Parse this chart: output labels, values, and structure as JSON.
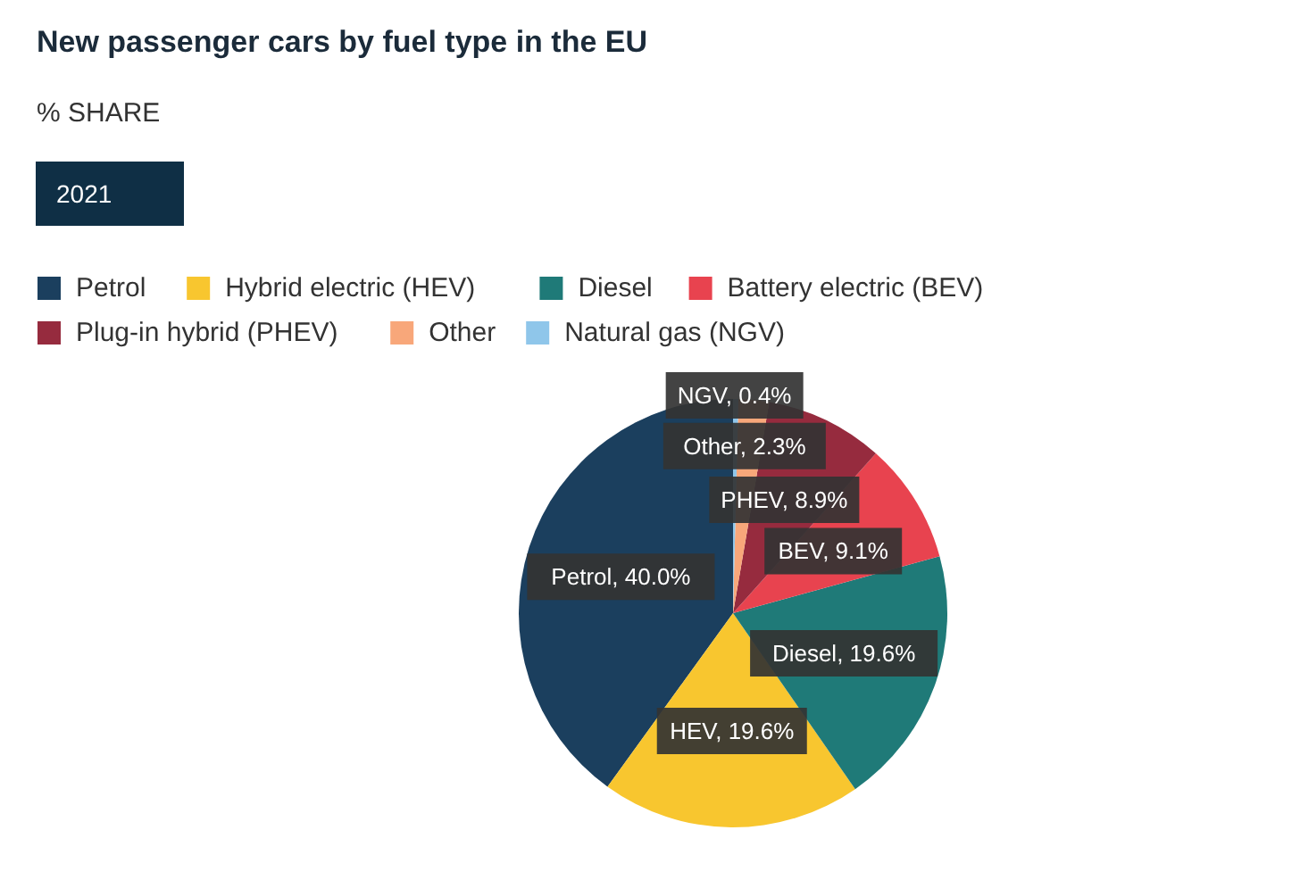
{
  "chart_data": {
    "type": "pie",
    "title": "New passenger cars by fuel type in the EU",
    "subtitle": "% SHARE",
    "annotations": [
      "2021"
    ],
    "categories": [
      "Petrol",
      "Hybrid electric (HEV)",
      "Diesel",
      "Battery electric (BEV)",
      "Plug-in hybrid (PHEV)",
      "Other",
      "Natural gas (NGV)"
    ],
    "values": [
      40.0,
      19.6,
      19.6,
      9.1,
      8.9,
      2.3,
      0.4
    ],
    "colors": [
      "#1b3f5e",
      "#f8c62f",
      "#1f7a78",
      "#e8434f",
      "#962b3e",
      "#f8a77a",
      "#8fc6ea"
    ],
    "value_labels": [
      "Petrol, 40.0%",
      "HEV, 19.6%",
      "Diesel, 19.6%",
      "BEV, 9.1%",
      "PHEV, 8.9%",
      "Other, 2.3%",
      "NGV, 0.4%"
    ],
    "legend": "top"
  }
}
